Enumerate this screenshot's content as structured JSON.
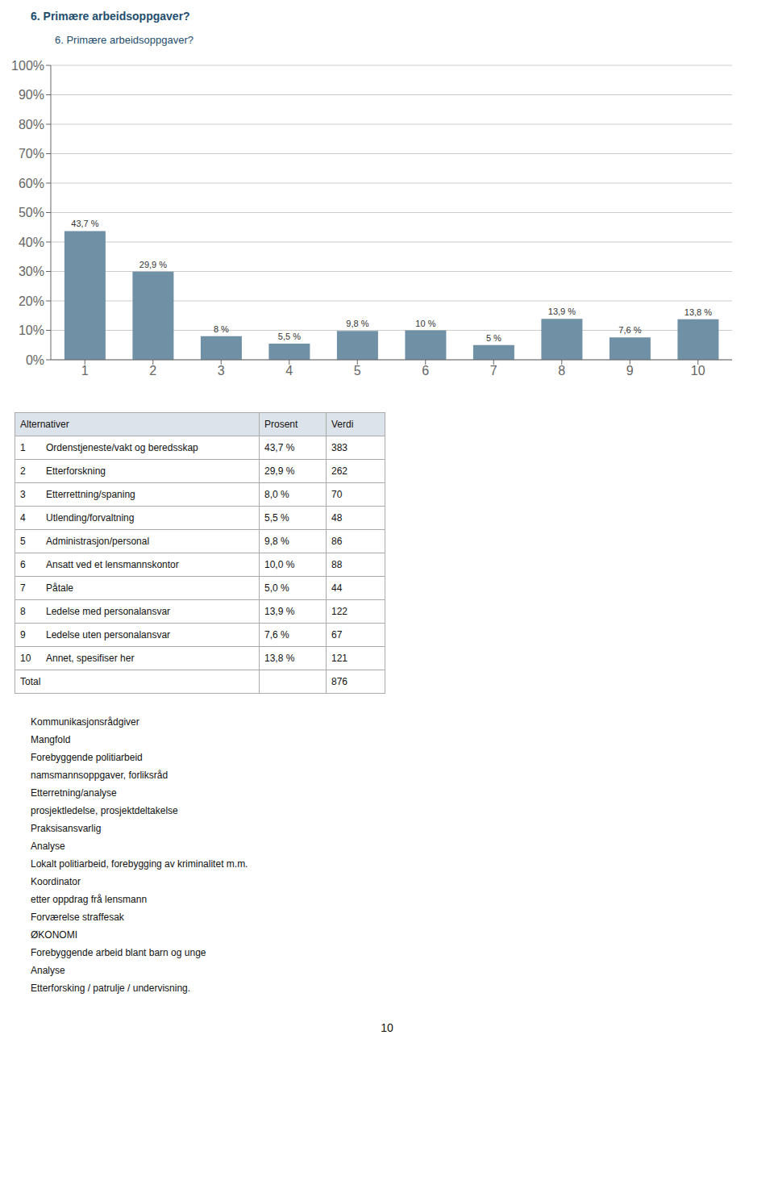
{
  "page_title": "6. Primære arbeidsoppgaver?",
  "chart_data": {
    "type": "bar",
    "title": "6. Primære arbeidsoppgaver?",
    "categories": [
      1,
      2,
      3,
      4,
      5,
      6,
      7,
      8,
      9,
      10
    ],
    "values": [
      43.7,
      29.9,
      8.0,
      5.5,
      9.8,
      10.0,
      5.0,
      13.9,
      7.6,
      13.8
    ],
    "value_labels": [
      "43,7 %",
      "29,9 %",
      "8 %",
      "5,5 %",
      "9,8 %",
      "10 %",
      "5 %",
      "13,9 %",
      "7,6 %",
      "13,8 %"
    ],
    "data_labels": true,
    "color": "#7090a5",
    "ylim": [
      0,
      100
    ],
    "yticks": [
      {
        "value": 0,
        "label": "0%"
      },
      {
        "value": 10,
        "label": "10%"
      },
      {
        "value": 20,
        "label": "20%"
      },
      {
        "value": 30,
        "label": "30%"
      },
      {
        "value": 40,
        "label": "40%"
      },
      {
        "value": 50,
        "label": "50%"
      },
      {
        "value": 60,
        "label": "60%"
      },
      {
        "value": 70,
        "label": "70%"
      },
      {
        "value": 80,
        "label": "80%"
      },
      {
        "value": 90,
        "label": "90%"
      },
      {
        "value": 100,
        "label": "100%"
      }
    ],
    "grid": true
  },
  "table": {
    "headers": [
      "Alternativer",
      "Prosent",
      "Verdi"
    ],
    "rows": [
      {
        "number": "1",
        "label": "Ordenstjeneste/vakt og beredsskap",
        "percent": "43,7 %",
        "count": 383
      },
      {
        "number": "2",
        "label": "Etterforskning",
        "percent": "29,9 %",
        "count": 262
      },
      {
        "number": "3",
        "label": "Etterrettning/spaning",
        "percent": "8,0 %",
        "count": 70
      },
      {
        "number": "4",
        "label": "Utlending/forvaltning",
        "percent": "5,5 %",
        "count": 48
      },
      {
        "number": "5",
        "label": "Administrasjon/personal",
        "percent": "9,8 %",
        "count": 86
      },
      {
        "number": "6",
        "label": "Ansatt ved et lensmannskontor",
        "percent": "10,0 %",
        "count": 88
      },
      {
        "number": "7",
        "label": "Påtale",
        "percent": "5,0 %",
        "count": 44
      },
      {
        "number": "8",
        "label": "Ledelse med personalansvar",
        "percent": "13,9 %",
        "count": 122
      },
      {
        "number": "9",
        "label": "Ledelse uten personalansvar",
        "percent": "7,6 %",
        "count": 67
      },
      {
        "number": "10",
        "label": "Annet, spesifiser her",
        "percent": "13,8 %",
        "count": 121
      }
    ],
    "total": {
      "label": "Total",
      "count": 876
    }
  },
  "extra_text": [
    "Kommunikasjonsrådgiver",
    "Mangfold",
    "Forebyggende politiarbeid",
    "namsmannsoppgaver, forliksråd",
    "Etterretning/analyse",
    "prosjektledelse, prosjektdeltakelse",
    "Praksisansvarlig",
    "Analyse",
    "Lokalt politiarbeid, forebygging av kriminalitet m.m.",
    "Koordinator",
    "etter oppdrag frå lensmann",
    "Forværelse straffesak",
    "ØKONOMI",
    "Forebyggende arbeid blant barn og unge",
    "Analyse",
    "Etterforsking / patrulje / undervisning."
  ],
  "page_number": "10"
}
